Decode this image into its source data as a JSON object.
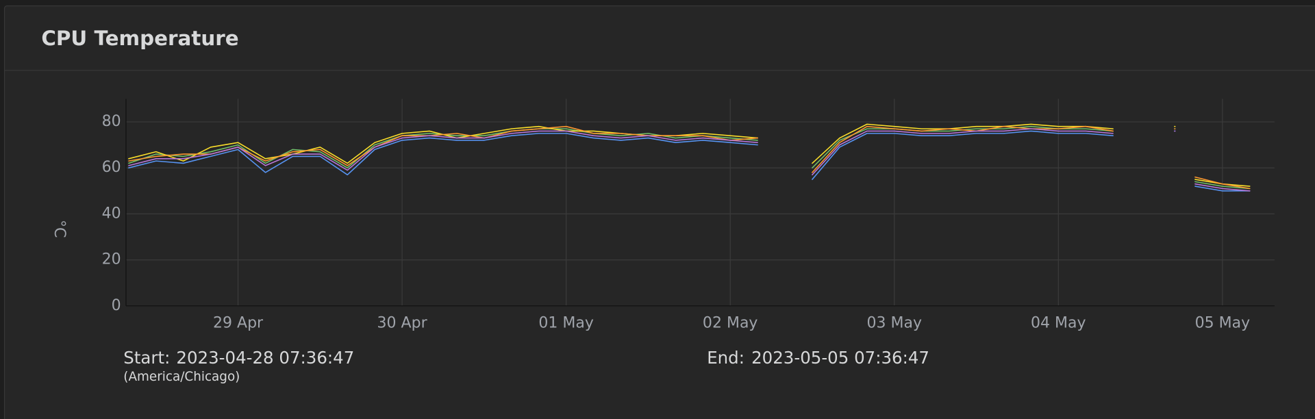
{
  "header": {
    "title": "CPU Temperature"
  },
  "chart_data": {
    "type": "line",
    "y_label": "°C",
    "x": [
      "2023-04-28T08:00",
      "2023-04-28T12:00",
      "2023-04-28T16:00",
      "2023-04-28T20:00",
      "2023-04-29T00:00",
      "2023-04-29T04:00",
      "2023-04-29T08:00",
      "2023-04-29T12:00",
      "2023-04-29T16:00",
      "2023-04-29T20:00",
      "2023-04-30T00:00",
      "2023-04-30T04:00",
      "2023-04-30T08:00",
      "2023-04-30T12:00",
      "2023-04-30T16:00",
      "2023-04-30T20:00",
      "2023-05-01T00:00",
      "2023-05-01T04:00",
      "2023-05-01T08:00",
      "2023-05-01T12:00",
      "2023-05-01T16:00",
      "2023-05-01T20:00",
      "2023-05-02T00:00",
      "2023-05-02T04:00",
      "2023-05-02T08:00",
      "2023-05-02T12:00",
      "2023-05-02T16:00",
      "2023-05-02T20:00",
      "2023-05-03T00:00",
      "2023-05-03T04:00",
      "2023-05-03T08:00",
      "2023-05-03T12:00",
      "2023-05-03T16:00",
      "2023-05-03T20:00",
      "2023-05-04T00:00",
      "2023-05-04T04:00",
      "2023-05-04T08:00",
      "2023-05-04T12:00",
      "2023-05-04T17:00",
      "2023-05-04T18:00",
      "2023-05-04T20:00",
      "2023-05-05T00:00",
      "2023-05-05T04:00"
    ],
    "series": [
      {
        "color": "#73bf69",
        "values": [
          62,
          66,
          65,
          67,
          70,
          62,
          68,
          67,
          60,
          70,
          74,
          75,
          74,
          74,
          76,
          77,
          77,
          75,
          74,
          75,
          73,
          74,
          73,
          72,
          null,
          60,
          72,
          77,
          77,
          76,
          76,
          77,
          77,
          78,
          77,
          77,
          76,
          null,
          77,
          null,
          54,
          52,
          51
        ]
      },
      {
        "color": "#fade2a",
        "values": [
          64,
          67,
          63,
          69,
          71,
          64,
          66,
          69,
          62,
          71,
          75,
          76,
          73,
          75,
          77,
          78,
          76,
          76,
          75,
          74,
          74,
          75,
          74,
          73,
          null,
          62,
          73,
          79,
          78,
          77,
          77,
          78,
          78,
          79,
          78,
          78,
          77,
          null,
          78,
          null,
          55,
          53,
          52
        ]
      },
      {
        "color": "#5794f2",
        "values": [
          60,
          63,
          62,
          65,
          68,
          58,
          65,
          65,
          57,
          68,
          72,
          73,
          72,
          72,
          74,
          75,
          75,
          73,
          72,
          73,
          71,
          72,
          71,
          70,
          null,
          55,
          69,
          75,
          75,
          74,
          74,
          75,
          75,
          76,
          75,
          75,
          74,
          null,
          76,
          null,
          52,
          50,
          50
        ]
      },
      {
        "color": "#ff9830",
        "values": [
          63,
          65,
          66,
          66,
          69,
          63,
          67,
          68,
          61,
          69,
          74,
          74,
          75,
          73,
          76,
          77,
          78,
          75,
          75,
          74,
          74,
          74,
          72,
          73,
          null,
          58,
          71,
          78,
          77,
          76,
          77,
          76,
          78,
          77,
          77,
          78,
          76,
          null,
          77,
          null,
          56,
          53,
          51
        ]
      },
      {
        "color": "#b877d9",
        "values": [
          61,
          64,
          64,
          66,
          69,
          61,
          66,
          66,
          59,
          69,
          73,
          74,
          73,
          73,
          75,
          76,
          76,
          74,
          73,
          74,
          72,
          73,
          72,
          71,
          null,
          57,
          70,
          76,
          76,
          75,
          75,
          76,
          76,
          77,
          76,
          76,
          75,
          null,
          76,
          null,
          53,
          51,
          50
        ]
      }
    ],
    "xlim": [
      "2023-04-28T07:36:47",
      "2023-05-05T07:36:47"
    ],
    "xticks": [
      {
        "value": "2023-04-29T00:00",
        "label": "29 Apr"
      },
      {
        "value": "2023-04-30T00:00",
        "label": "30 Apr"
      },
      {
        "value": "2023-05-01T00:00",
        "label": "01 May"
      },
      {
        "value": "2023-05-02T00:00",
        "label": "02 May"
      },
      {
        "value": "2023-05-03T00:00",
        "label": "03 May"
      },
      {
        "value": "2023-05-04T00:00",
        "label": "04 May"
      },
      {
        "value": "2023-05-05T00:00",
        "label": "05 May"
      }
    ],
    "ylim": [
      0,
      90
    ],
    "yticks": [
      0,
      20,
      40,
      60,
      80
    ],
    "grid": true
  },
  "footer": {
    "start_label": "Start:",
    "start": "2023-04-28 07:36:47",
    "timezone": "(America/Chicago)",
    "end_label": "End:",
    "end": "2023-05-05 07:36:47"
  }
}
